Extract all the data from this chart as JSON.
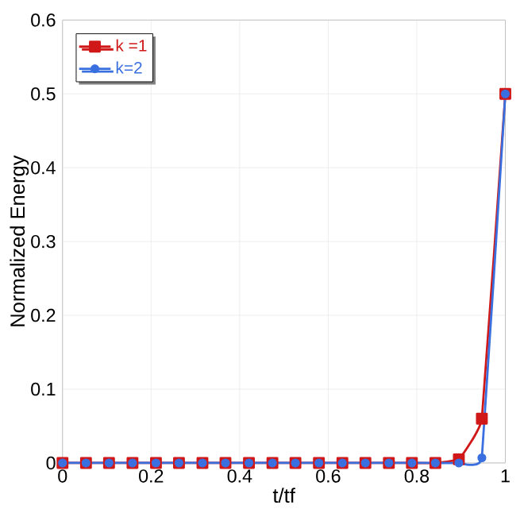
{
  "chart_data": {
    "type": "line",
    "xlabel": "t/tf",
    "ylabel": "Normalized Energy",
    "x": [
      0,
      0.053,
      0.105,
      0.158,
      0.211,
      0.263,
      0.316,
      0.368,
      0.421,
      0.474,
      0.526,
      0.579,
      0.632,
      0.684,
      0.737,
      0.789,
      0.842,
      0.895,
      0.947,
      1
    ],
    "series": [
      {
        "name": "k =1",
        "color": "#d01818",
        "marker": "square",
        "values": [
          0,
          0,
          0,
          0,
          0,
          0,
          0,
          0,
          0,
          0,
          0,
          0,
          0,
          0,
          0,
          0,
          0,
          0.005,
          0.06,
          0.5
        ]
      },
      {
        "name": "k=2",
        "color": "#3a6fe0",
        "marker": "circle",
        "values": [
          0,
          0,
          0,
          0,
          0,
          0,
          0,
          0,
          0,
          0,
          0,
          0,
          0,
          0,
          0,
          0,
          0,
          0,
          0.007,
          0.5
        ]
      }
    ],
    "xlim": [
      0,
      1
    ],
    "ylim": [
      0,
      0.6
    ],
    "xticks": [
      0,
      0.2,
      0.4,
      0.6,
      0.8,
      1
    ],
    "yticks": [
      0,
      0.1,
      0.2,
      0.3,
      0.4,
      0.5,
      0.6
    ],
    "grid": true,
    "legend": "top left",
    "line_style": "solid"
  }
}
